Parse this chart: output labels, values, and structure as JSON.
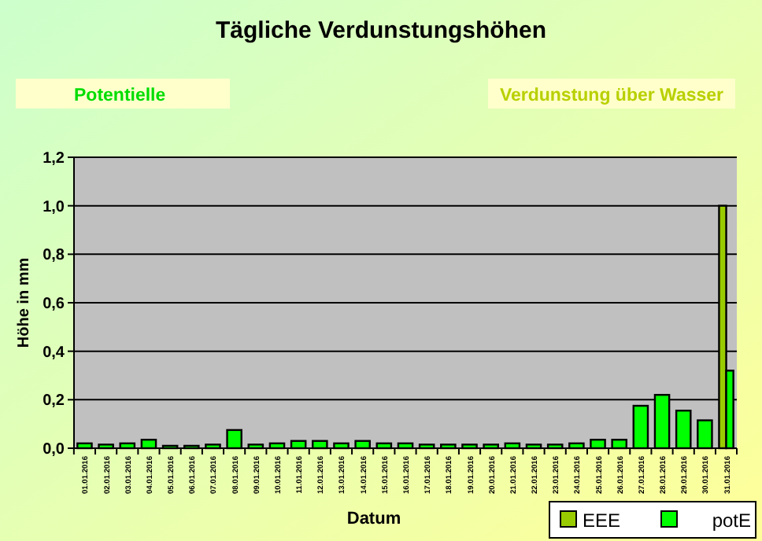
{
  "chart_data": {
    "type": "bar",
    "title": "Tägliche Verdunstungshöhen",
    "annotations": [
      "Potentielle",
      "Verdunstung über Wasser"
    ],
    "xlabel": "Datum",
    "ylabel": "Höhe in mm",
    "categories": [
      "01.01.2016",
      "02.01.2016",
      "03.01.2016",
      "04.01.2016",
      "05.01.2016",
      "06.01.2016",
      "07.01.2016",
      "08.01.2016",
      "09.01.2016",
      "10.01.2016",
      "11.01.2016",
      "12.01.2016",
      "13.01.2016",
      "14.01.2016",
      "15.01.2016",
      "16.01.2016",
      "17.01.2016",
      "18.01.2016",
      "19.01.2016",
      "20.01.2016",
      "21.01.2016",
      "22.01.2016",
      "23.01.2016",
      "24.01.2016",
      "25.01.2016",
      "26.01.2016",
      "27.01.2016",
      "28.01.2016",
      "29.01.2016",
      "30.01.2016",
      "31.01.2016"
    ],
    "series": [
      {
        "name": "EEE",
        "color": "#99cc00",
        "values": [
          null,
          null,
          null,
          null,
          null,
          null,
          null,
          null,
          null,
          null,
          null,
          null,
          null,
          null,
          null,
          null,
          null,
          null,
          null,
          null,
          null,
          null,
          null,
          null,
          null,
          null,
          null,
          null,
          null,
          null,
          1.0
        ]
      },
      {
        "name": "potE",
        "color": "#00ff00",
        "values": [
          0.02,
          0.015,
          0.02,
          0.035,
          0.01,
          0.01,
          0.015,
          0.075,
          0.015,
          0.02,
          0.03,
          0.03,
          0.02,
          0.03,
          0.02,
          0.02,
          0.015,
          0.015,
          0.015,
          0.015,
          0.02,
          0.015,
          0.015,
          0.02,
          0.035,
          0.035,
          0.175,
          0.22,
          0.155,
          0.115,
          0.32
        ]
      }
    ],
    "ylim": [
      0,
      1.2
    ],
    "yticks": [
      {
        "value": 0,
        "label": "0,0"
      },
      {
        "value": 0.2,
        "label": "0,2"
      },
      {
        "value": 0.4,
        "label": "0,4"
      },
      {
        "value": 0.6,
        "label": "0,6"
      },
      {
        "value": 0.8,
        "label": "0,8"
      },
      {
        "value": 1.0,
        "label": "1,0"
      },
      {
        "value": 1.2,
        "label": "1,2"
      }
    ],
    "grid": "y",
    "legend": "bottom right"
  }
}
